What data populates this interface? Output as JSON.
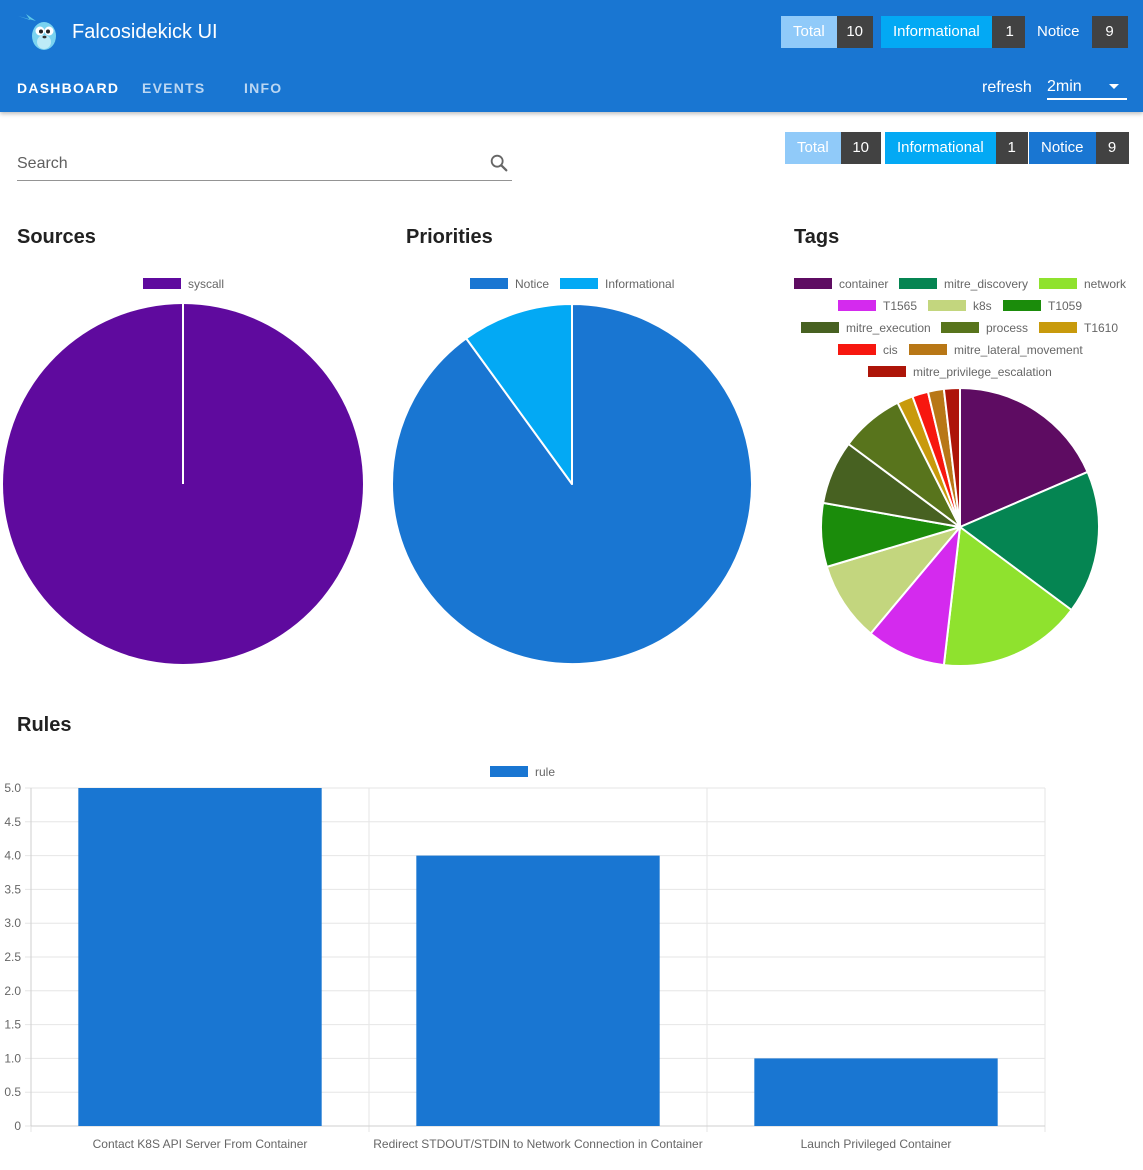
{
  "app": {
    "title": "Falcosidekick UI"
  },
  "counters": [
    {
      "label": "Total",
      "value": "10",
      "color": "#90caf9"
    },
    {
      "label": "Informational",
      "value": "1",
      "color": "#03a9f4"
    },
    {
      "label": "Notice",
      "value": "9",
      "color": "#1976d2"
    }
  ],
  "nav": {
    "tabs": [
      {
        "label": "DASHBOARD",
        "active": true
      },
      {
        "label": "EVENTS",
        "active": false
      },
      {
        "label": "INFO",
        "active": false
      }
    ],
    "refresh_label": "refresh",
    "refresh_value": "2min"
  },
  "search": {
    "placeholder": "Search",
    "value": ""
  },
  "sections": {
    "sources": "Sources",
    "priorities": "Priorities",
    "tags": "Tags",
    "rules": "Rules"
  },
  "chart_data": [
    {
      "type": "pie",
      "title": "Sources",
      "labels": [
        "syscall"
      ],
      "values": [
        10
      ],
      "colors": [
        "#5f0a9e"
      ]
    },
    {
      "type": "pie",
      "title": "Priorities",
      "labels": [
        "Notice",
        "Informational"
      ],
      "values": [
        9,
        1
      ],
      "colors": [
        "#1976d2",
        "#03a9f4"
      ]
    },
    {
      "type": "pie",
      "title": "Tags",
      "labels": [
        "container",
        "mitre_discovery",
        "network",
        "T1565",
        "k8s",
        "T1059",
        "mitre_execution",
        "process",
        "T1610",
        "cis",
        "mitre_lateral_movement",
        "mitre_privilege_escalation"
      ],
      "values": [
        10,
        9,
        9,
        5,
        5,
        4,
        4,
        4,
        1,
        1,
        1,
        1
      ],
      "colors": [
        "#5e0c62",
        "#058552",
        "#8fe22e",
        "#d42aee",
        "#c3d67e",
        "#1b8c0b",
        "#476121",
        "#58741c",
        "#c89a0c",
        "#f7170f",
        "#b87716",
        "#ad1509"
      ]
    },
    {
      "type": "bar",
      "title": "Rules",
      "legend": [
        "rule"
      ],
      "categories": [
        "Contact K8S API Server From Container",
        "Redirect STDOUT/STDIN to Network Connection in Container",
        "Launch Privileged Container"
      ],
      "values": [
        5,
        4,
        1
      ],
      "ylim": [
        0,
        5
      ],
      "yticks": [
        "5.0",
        "4.5",
        "4.0",
        "3.5",
        "3.0",
        "2.5",
        "2.0",
        "1.5",
        "1.0",
        "0.5",
        "0"
      ],
      "color": "#1976d2"
    }
  ]
}
